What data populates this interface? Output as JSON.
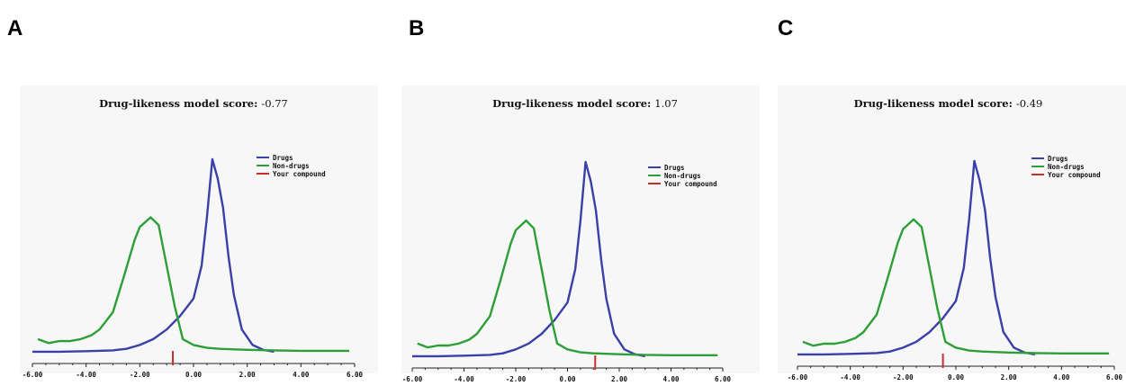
{
  "panels": [
    {
      "letter": "A",
      "title_label": "Drug-likeness model score:",
      "title_value": "-0.77"
    },
    {
      "letter": "B",
      "title_label": "Drug-likeness model score:",
      "title_value": "1.07"
    },
    {
      "letter": "C",
      "title_label": "Drug-likeness model score:",
      "title_value": "-0.49"
    }
  ],
  "chart_data": [
    {
      "type": "line",
      "title": "Drug-likeness model score: -0.77",
      "xlim": [
        -6,
        6
      ],
      "x_ticks": [
        "-6.00",
        "-4.00",
        "-2.00",
        "0.00",
        "2.00",
        "4.00",
        "6.00"
      ],
      "grid": false,
      "legend_position": "top-right",
      "series": [
        {
          "name": "Drugs",
          "color": "#3b3fa8",
          "x": [
            -6.0,
            -5.0,
            -4.0,
            -3.0,
            -2.5,
            -2.0,
            -1.5,
            -1.0,
            -0.5,
            0.0,
            0.3,
            0.5,
            0.7,
            0.9,
            1.1,
            1.3,
            1.5,
            1.8,
            2.2,
            2.6,
            3.0
          ],
          "y": [
            0.005,
            0.005,
            0.008,
            0.012,
            0.02,
            0.04,
            0.07,
            0.12,
            0.19,
            0.28,
            0.45,
            0.7,
            1.0,
            0.9,
            0.75,
            0.5,
            0.3,
            0.12,
            0.04,
            0.015,
            0.005
          ]
        },
        {
          "name": "Non-drugs",
          "color": "#2e9e38",
          "x": [
            -5.8,
            -5.4,
            -5.0,
            -4.6,
            -4.2,
            -3.8,
            -3.5,
            -3.0,
            -2.6,
            -2.2,
            -2.0,
            -1.6,
            -1.3,
            -1.0,
            -0.7,
            -0.4,
            0.0,
            0.5,
            1.0,
            2.0,
            3.0,
            4.0,
            5.0,
            5.8
          ],
          "y": [
            0.07,
            0.05,
            0.06,
            0.06,
            0.07,
            0.09,
            0.12,
            0.21,
            0.39,
            0.58,
            0.65,
            0.7,
            0.66,
            0.45,
            0.24,
            0.07,
            0.04,
            0.025,
            0.02,
            0.015,
            0.012,
            0.01,
            0.01,
            0.01
          ]
        },
        {
          "name": "Your compound",
          "color": "#c43030",
          "marker_x": -0.77
        }
      ]
    },
    {
      "type": "line",
      "title": "Drug-likeness model score: 1.07",
      "xlim": [
        -6,
        6
      ],
      "x_ticks": [
        "-6.00",
        "-4.00",
        "-2.00",
        "0.00",
        "2.00",
        "4.00",
        "6.00"
      ],
      "grid": false,
      "legend_position": "top-right",
      "series": [
        {
          "name": "Drugs",
          "color": "#3b3fa8",
          "x": [
            -6.0,
            -5.0,
            -4.0,
            -3.0,
            -2.5,
            -2.0,
            -1.5,
            -1.0,
            -0.5,
            0.0,
            0.3,
            0.5,
            0.7,
            0.9,
            1.1,
            1.3,
            1.5,
            1.8,
            2.2,
            2.6,
            3.0
          ],
          "y": [
            0.005,
            0.005,
            0.008,
            0.012,
            0.02,
            0.04,
            0.07,
            0.12,
            0.19,
            0.28,
            0.45,
            0.7,
            1.0,
            0.9,
            0.75,
            0.5,
            0.3,
            0.12,
            0.04,
            0.015,
            0.005
          ]
        },
        {
          "name": "Non-drugs",
          "color": "#2e9e38",
          "x": [
            -5.8,
            -5.4,
            -5.0,
            -4.6,
            -4.2,
            -3.8,
            -3.5,
            -3.0,
            -2.6,
            -2.2,
            -2.0,
            -1.6,
            -1.3,
            -1.0,
            -0.7,
            -0.4,
            0.0,
            0.5,
            1.0,
            2.0,
            3.0,
            4.0,
            5.0,
            5.8
          ],
          "y": [
            0.07,
            0.05,
            0.06,
            0.06,
            0.07,
            0.09,
            0.12,
            0.21,
            0.39,
            0.58,
            0.65,
            0.7,
            0.66,
            0.45,
            0.24,
            0.07,
            0.04,
            0.025,
            0.02,
            0.015,
            0.012,
            0.01,
            0.01,
            0.01
          ]
        },
        {
          "name": "Your compound",
          "color": "#c43030",
          "marker_x": 1.07
        }
      ]
    },
    {
      "type": "line",
      "title": "Drug-likeness model score: -0.49",
      "xlim": [
        -6,
        6
      ],
      "x_ticks": [
        "-6.00",
        "-4.00",
        "-2.00",
        "0.00",
        "2.00",
        "4.00",
        "6.00"
      ],
      "grid": false,
      "legend_position": "top-right",
      "series": [
        {
          "name": "Drugs",
          "color": "#3b3fa8",
          "x": [
            -6.0,
            -5.0,
            -4.0,
            -3.0,
            -2.5,
            -2.0,
            -1.5,
            -1.0,
            -0.5,
            0.0,
            0.3,
            0.5,
            0.7,
            0.9,
            1.1,
            1.3,
            1.5,
            1.8,
            2.2,
            2.6,
            3.0
          ],
          "y": [
            0.005,
            0.005,
            0.008,
            0.012,
            0.02,
            0.04,
            0.07,
            0.12,
            0.19,
            0.28,
            0.45,
            0.7,
            1.0,
            0.9,
            0.75,
            0.5,
            0.3,
            0.12,
            0.04,
            0.015,
            0.005
          ]
        },
        {
          "name": "Non-drugs",
          "color": "#2e9e38",
          "x": [
            -5.8,
            -5.4,
            -5.0,
            -4.6,
            -4.2,
            -3.8,
            -3.5,
            -3.0,
            -2.6,
            -2.2,
            -2.0,
            -1.6,
            -1.3,
            -1.0,
            -0.7,
            -0.4,
            0.0,
            0.5,
            1.0,
            2.0,
            3.0,
            4.0,
            5.0,
            5.8
          ],
          "y": [
            0.07,
            0.05,
            0.06,
            0.06,
            0.07,
            0.09,
            0.12,
            0.21,
            0.39,
            0.58,
            0.65,
            0.7,
            0.66,
            0.45,
            0.24,
            0.07,
            0.04,
            0.025,
            0.02,
            0.015,
            0.012,
            0.01,
            0.01,
            0.01
          ]
        },
        {
          "name": "Your compound",
          "color": "#c43030",
          "marker_x": -0.49
        }
      ]
    }
  ]
}
